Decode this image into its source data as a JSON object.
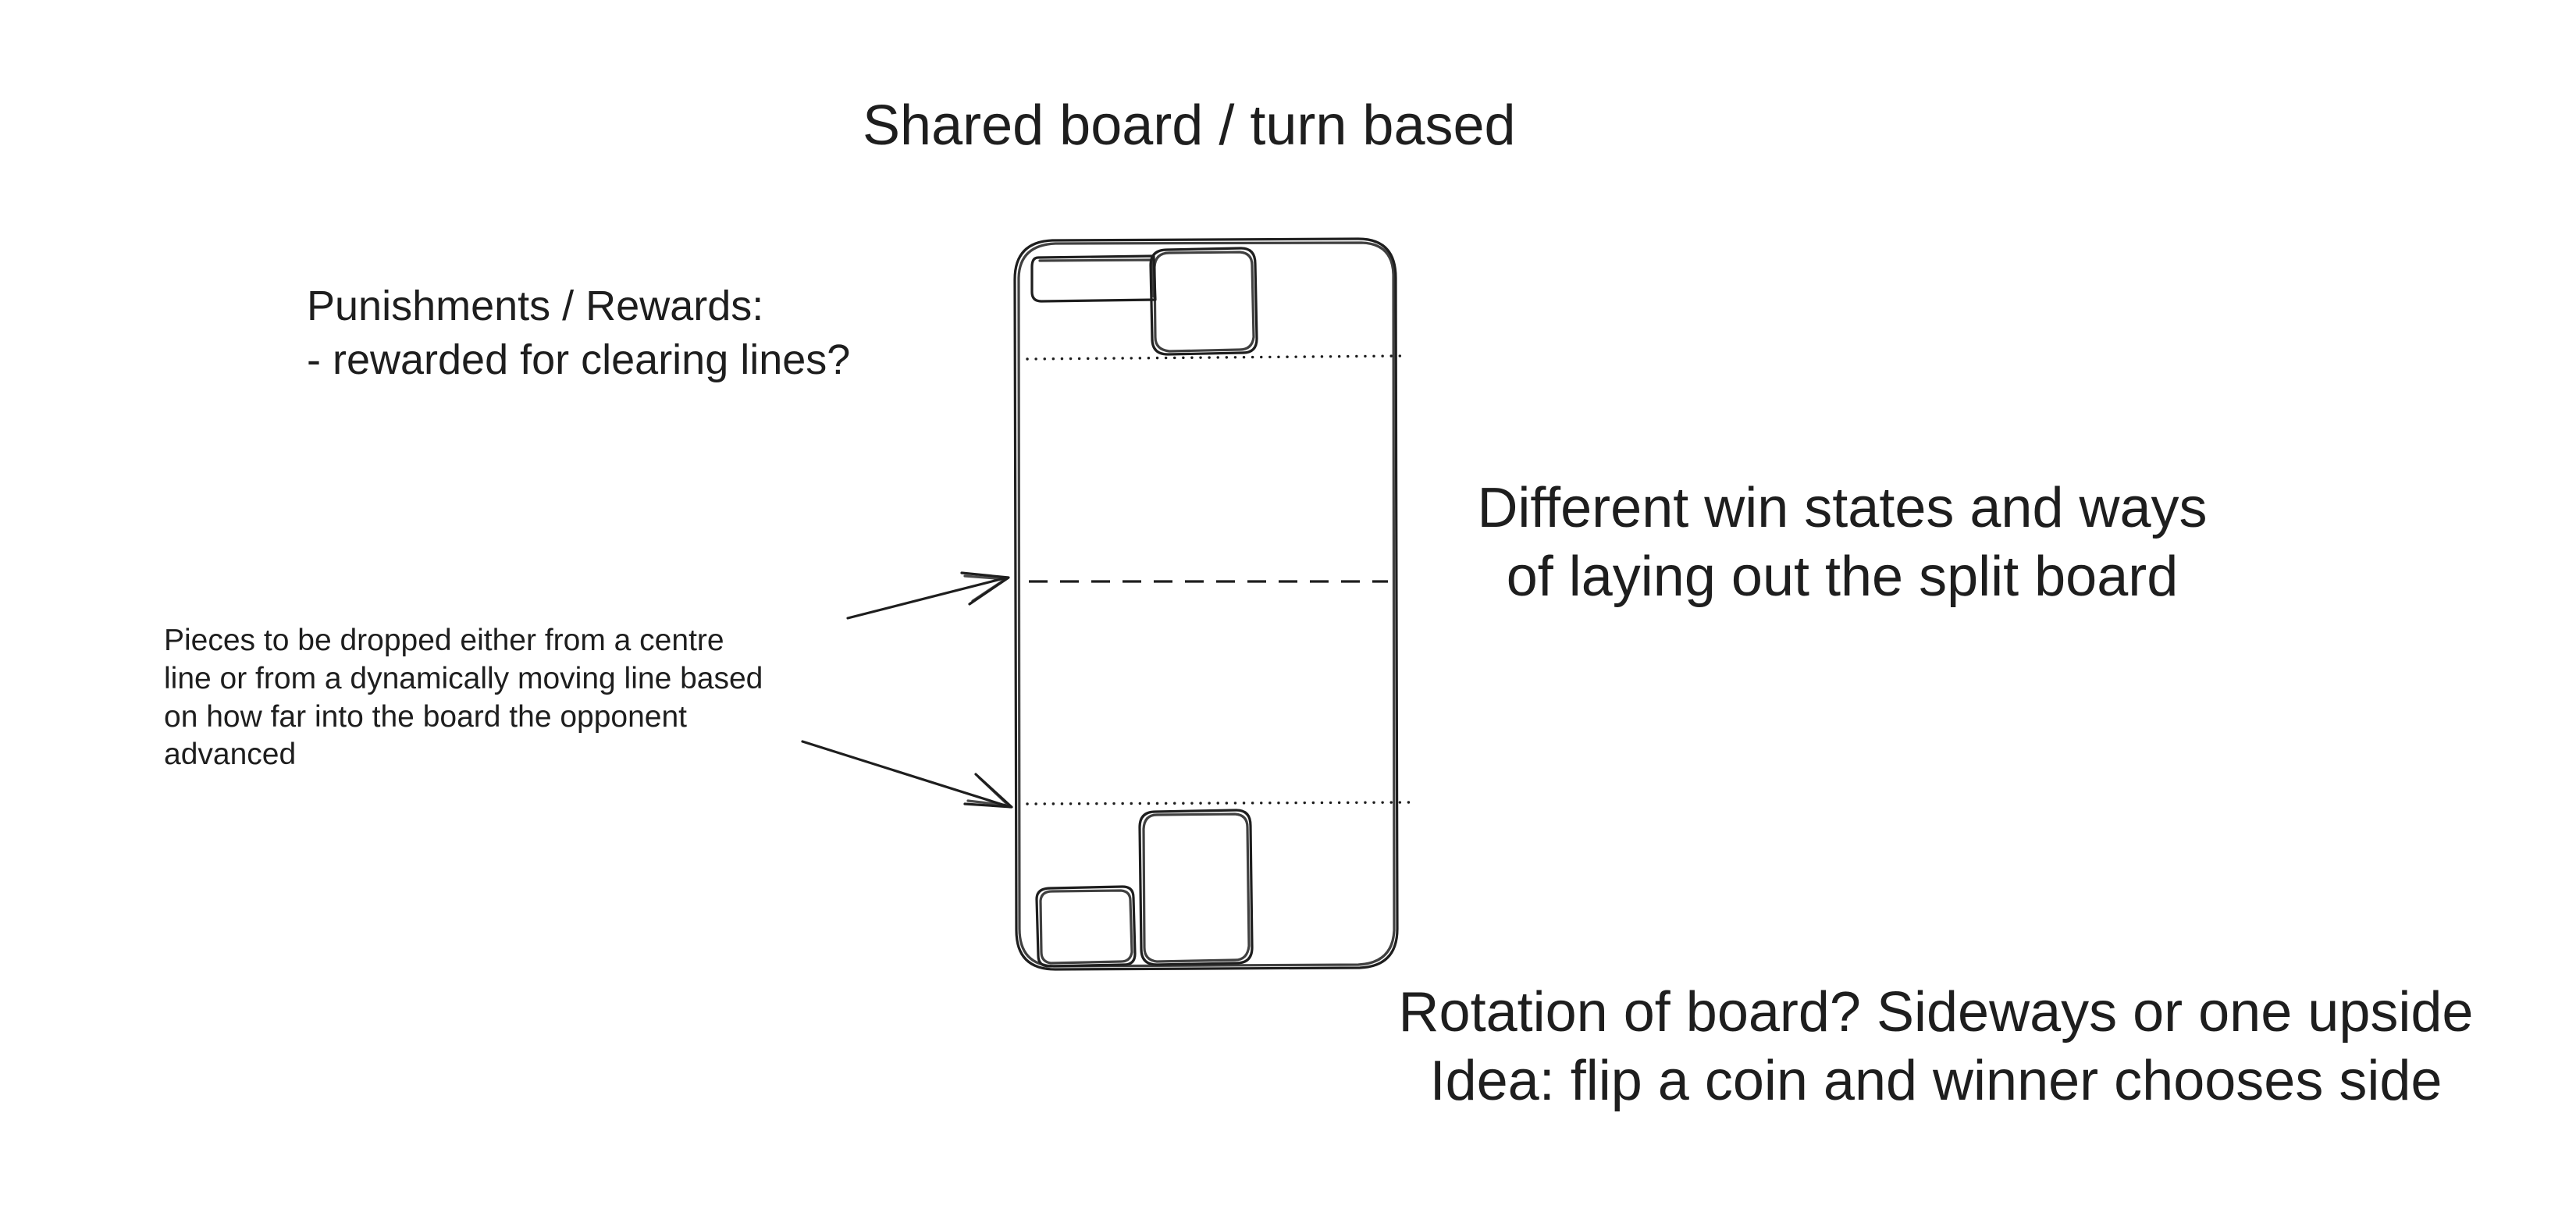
{
  "title": "Shared board / turn based",
  "notes": {
    "rewards": {
      "lines": [
        "Punishments / Rewards:",
        "- rewarded for clearing lines?"
      ]
    },
    "drop": {
      "lines": [
        "Pieces to be dropped either from a centre",
        "line or from a dynamically moving line based",
        "on how far into the board the opponent",
        "advanced"
      ]
    },
    "win": {
      "lines": [
        "Different win states and ways",
        "of laying out the split board"
      ]
    },
    "rotation": {
      "lines": [
        "Rotation of board? Sideways or one upside",
        "Idea: flip a coin and winner chooses side"
      ]
    }
  },
  "diagram": {
    "stroke_color": "#1e1e1e",
    "background_color": "#ffffff"
  }
}
